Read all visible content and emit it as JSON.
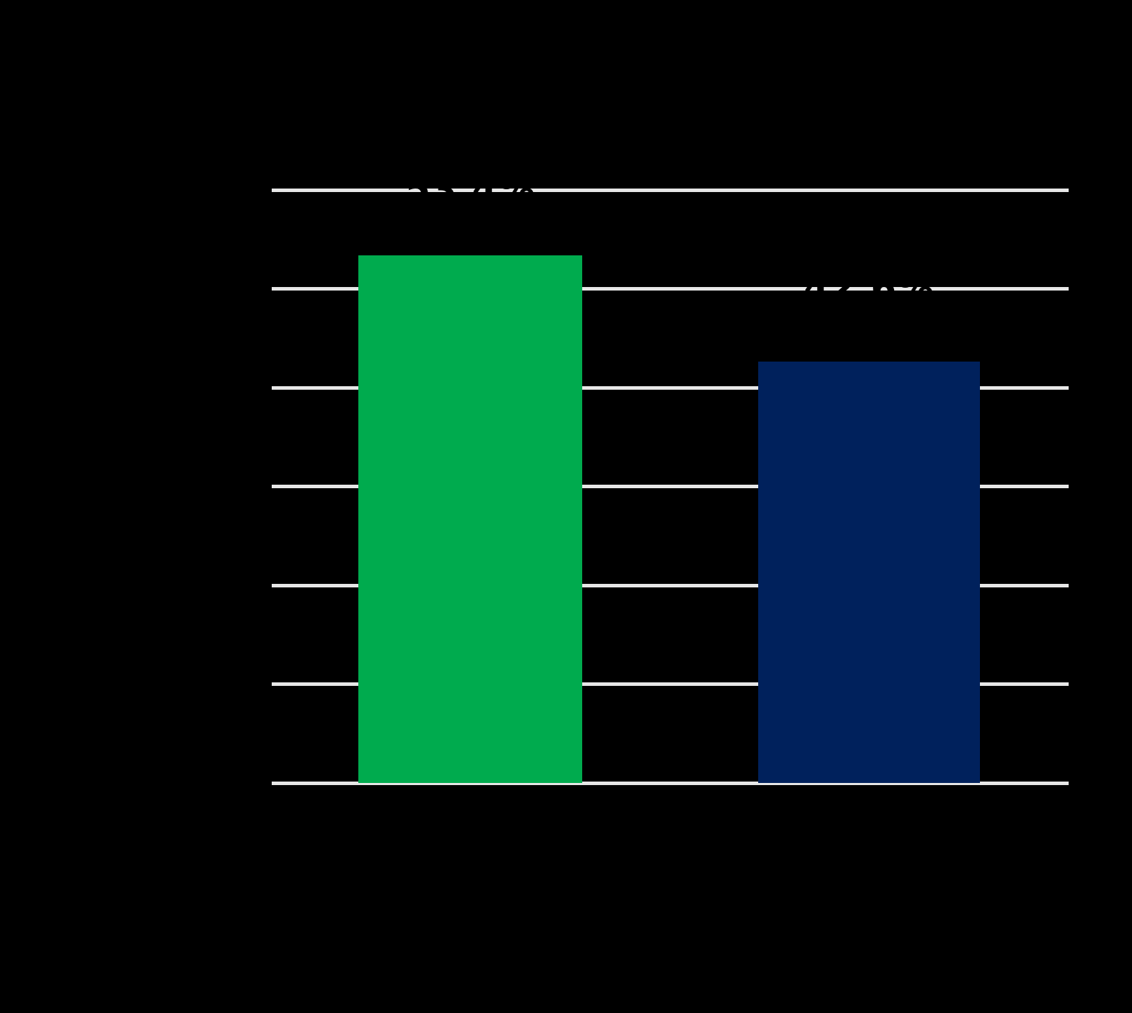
{
  "chart_data": {
    "type": "bar",
    "categories": [
      "",
      ""
    ],
    "values": [
      53.4,
      42.6
    ],
    "data_labels": [
      "53.4%",
      "42.6%"
    ],
    "bar_colors": [
      "#00ab4e",
      "#00215c"
    ],
    "title": "",
    "xlabel": "",
    "ylabel": "",
    "ylim": [
      0,
      60
    ],
    "grid": true,
    "gridline_step": 10,
    "gridline_color": "#e7e7e7",
    "background_color": "#000000",
    "text_color": "#000000",
    "legend": "none"
  }
}
